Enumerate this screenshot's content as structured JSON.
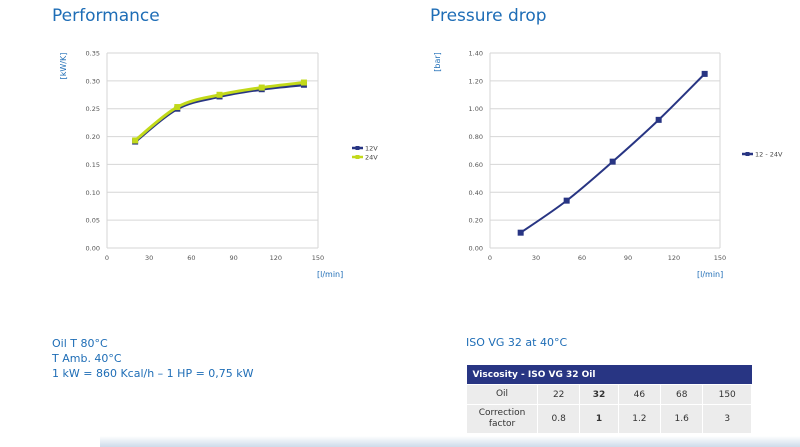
{
  "performance": {
    "title": "Performance",
    "chart_data": {
      "type": "line",
      "ylabel": "[kW/K]",
      "xlabel": "[l/min]",
      "xlim": [
        0,
        150
      ],
      "ylim": [
        0,
        0.35
      ],
      "x_ticks": [
        "0",
        "30",
        "60",
        "90",
        "120",
        "150"
      ],
      "y_ticks": [
        "0.00",
        "0.05",
        "0.10",
        "0.15",
        "0.20",
        "0.25",
        "0.30",
        "0.35"
      ],
      "x_tick_values": [
        0,
        30,
        60,
        90,
        120,
        150
      ],
      "y_tick_values": [
        0,
        0.05,
        0.1,
        0.15,
        0.2,
        0.25,
        0.3,
        0.35
      ],
      "grid": true,
      "legend_position": "right",
      "x": [
        20,
        50,
        80,
        110,
        140
      ],
      "series": [
        {
          "name": "12V",
          "color": "#283583",
          "values": [
            0.191,
            0.25,
            0.272,
            0.285,
            0.293
          ]
        },
        {
          "name": "24V",
          "color": "#c2d91a",
          "values": [
            0.193,
            0.253,
            0.275,
            0.288,
            0.297
          ]
        }
      ]
    }
  },
  "pressure_drop": {
    "title": "Pressure drop",
    "chart_data": {
      "type": "line",
      "ylabel": "[bar]",
      "xlabel": "[l/min]",
      "xlim": [
        0,
        150
      ],
      "ylim": [
        0,
        1.4
      ],
      "x_ticks": [
        "0",
        "30",
        "60",
        "90",
        "120",
        "150"
      ],
      "y_ticks": [
        "0.00",
        "0.20",
        "0.40",
        "0.60",
        "0.80",
        "1.00",
        "1.20",
        "1.40"
      ],
      "x_tick_values": [
        0,
        30,
        60,
        90,
        120,
        150
      ],
      "y_tick_values": [
        0,
        0.2,
        0.4,
        0.6,
        0.8,
        1.0,
        1.2,
        1.4
      ],
      "grid": true,
      "legend_position": "right",
      "x": [
        20,
        50,
        80,
        110,
        140
      ],
      "series": [
        {
          "name": "12 - 24V",
          "color": "#283583",
          "values": [
            0.11,
            0.34,
            0.62,
            0.92,
            1.25
          ]
        }
      ]
    }
  },
  "info": {
    "line1": "Oil T 80°C",
    "line2": "T Amb. 40°C",
    "line3": "1 kW = 860 Kcal/h – 1 HP = 0,75 kW"
  },
  "viscosity": {
    "caption": "ISO VG 32 at 40°C",
    "header": "Viscosity - ISO VG 32 Oil",
    "row1_label": "Oil",
    "row1_values": [
      "22",
      "32",
      "46",
      "68",
      "150"
    ],
    "row2_label_a": "Correction",
    "row2_label_b": "factor",
    "row2_values": [
      "0.8",
      "1",
      "1.2",
      "1.6",
      "3"
    ]
  }
}
